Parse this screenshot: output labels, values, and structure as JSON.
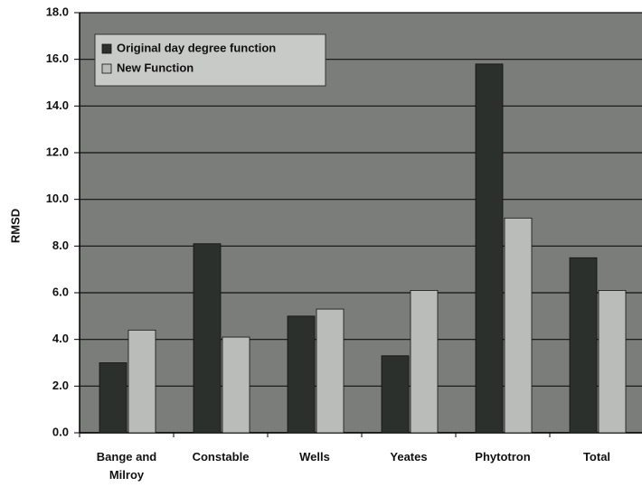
{
  "chart_data": {
    "type": "bar",
    "y_label": "RMSD",
    "categories": [
      "Bange and Milroy",
      "Constable",
      "Wells",
      "Yeates",
      "Phytotron",
      "Total"
    ],
    "series": [
      {
        "name": "Original day degree function",
        "color": "#2b302c",
        "values": [
          3.0,
          8.1,
          5.0,
          3.3,
          15.8,
          7.5
        ]
      },
      {
        "name": "New Function",
        "color": "#b9bcb8",
        "values": [
          4.4,
          4.1,
          5.3,
          6.1,
          9.2,
          6.1
        ]
      }
    ],
    "ylim": [
      0,
      18
    ],
    "yticks": [
      {
        "value": 0,
        "label": "0.0"
      },
      {
        "value": 2,
        "label": "2.0"
      },
      {
        "value": 4,
        "label": "4.0"
      },
      {
        "value": 6,
        "label": "6.0"
      },
      {
        "value": 8,
        "label": "8.0"
      },
      {
        "value": 10,
        "label": "10.0"
      },
      {
        "value": 12,
        "label": "12.0"
      },
      {
        "value": 14,
        "label": "14.0"
      },
      {
        "value": 16,
        "label": "16.0"
      },
      {
        "value": 18,
        "label": "18.0"
      }
    ],
    "grid": true,
    "legend": "top-left"
  }
}
